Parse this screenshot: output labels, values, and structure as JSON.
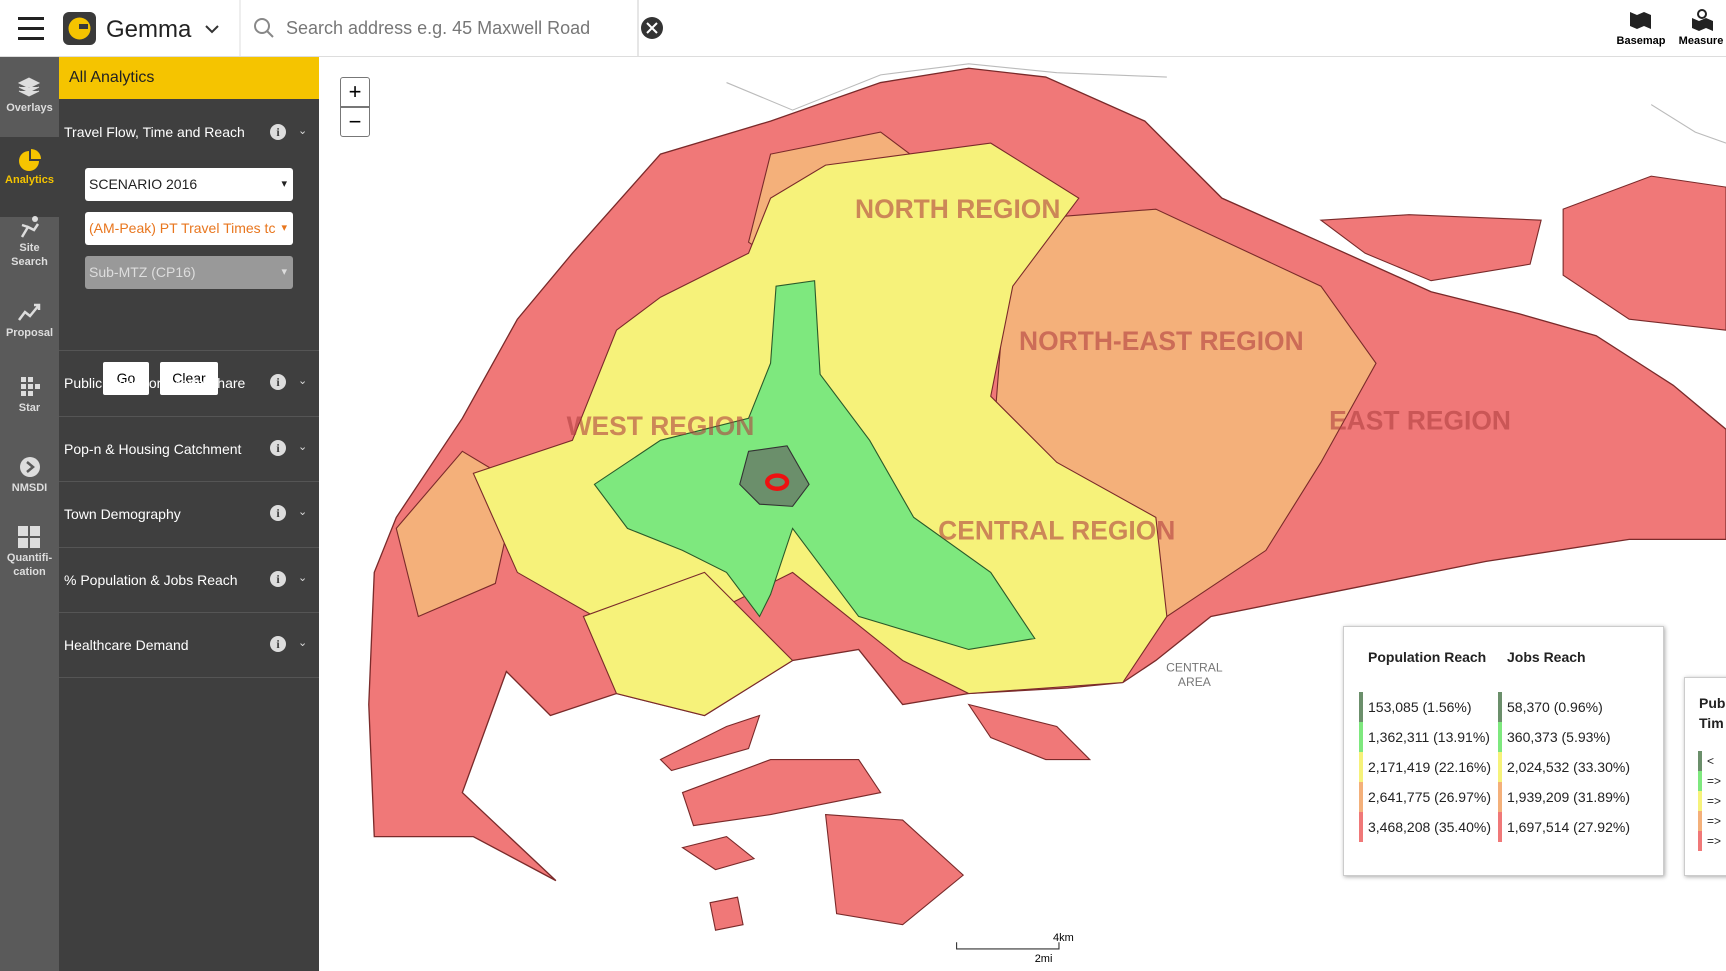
{
  "topbar": {
    "app_name": "Gemma",
    "search_placeholder": "Search address e.g. 45 Maxwell Road",
    "tools": [
      "Basemap",
      "Measure"
    ]
  },
  "sidebar": {
    "items": [
      "Overlays",
      "Analytics",
      "Site Search",
      "Proposal",
      "Star",
      "NMSDI",
      "Quantifi-cation"
    ]
  },
  "panel": {
    "header": "All Analytics",
    "first_section": "Travel Flow, Time and Reach",
    "scenario": "SCENARIO 2016",
    "measure": "(AM-Peak) PT Travel Times tc",
    "zone": "Sub-MTZ (CP16)",
    "buttons": [
      "Go",
      "Clear"
    ],
    "sections": [
      "Public Transport Mode Share",
      "Pop-n & Housing Catchment",
      "Town Demography",
      "% Population & Jobs Reach",
      "Healthcare Demand"
    ]
  },
  "map": {
    "zoom": [
      "+",
      "−"
    ],
    "region_labels": [
      "NORTH REGION",
      "NORTH-EAST REGION",
      "WEST REGION",
      "EAST REGION",
      "CENTRAL REGION"
    ],
    "area_label": [
      "CENTRAL",
      "AREA"
    ],
    "scale": [
      "4km",
      "2mi"
    ]
  },
  "legend": {
    "columns": [
      "Population Reach",
      "Jobs Reach"
    ],
    "rows": [
      [
        "153,085 (1.56%)",
        "58,370 (0.96%)"
      ],
      [
        "1,362,311 (13.91%)",
        "360,373 (5.93%)"
      ],
      [
        "2,171,419 (22.16%)",
        "2,024,532 (33.30%)"
      ],
      [
        "2,641,775 (26.97%)",
        "1,939,209 (31.89%)"
      ],
      [
        "3,468,208 (35.40%)",
        "1,697,514 (27.92%)"
      ]
    ],
    "colors": [
      "#6b8f6b",
      "#7ee87e",
      "#f6f27a",
      "#f4b07a",
      "#f07878"
    ]
  },
  "legend2": {
    "title": [
      "Pub",
      "Tim"
    ],
    "rows": [
      "<",
      "=>",
      "=>",
      "=>",
      "=>"
    ]
  }
}
